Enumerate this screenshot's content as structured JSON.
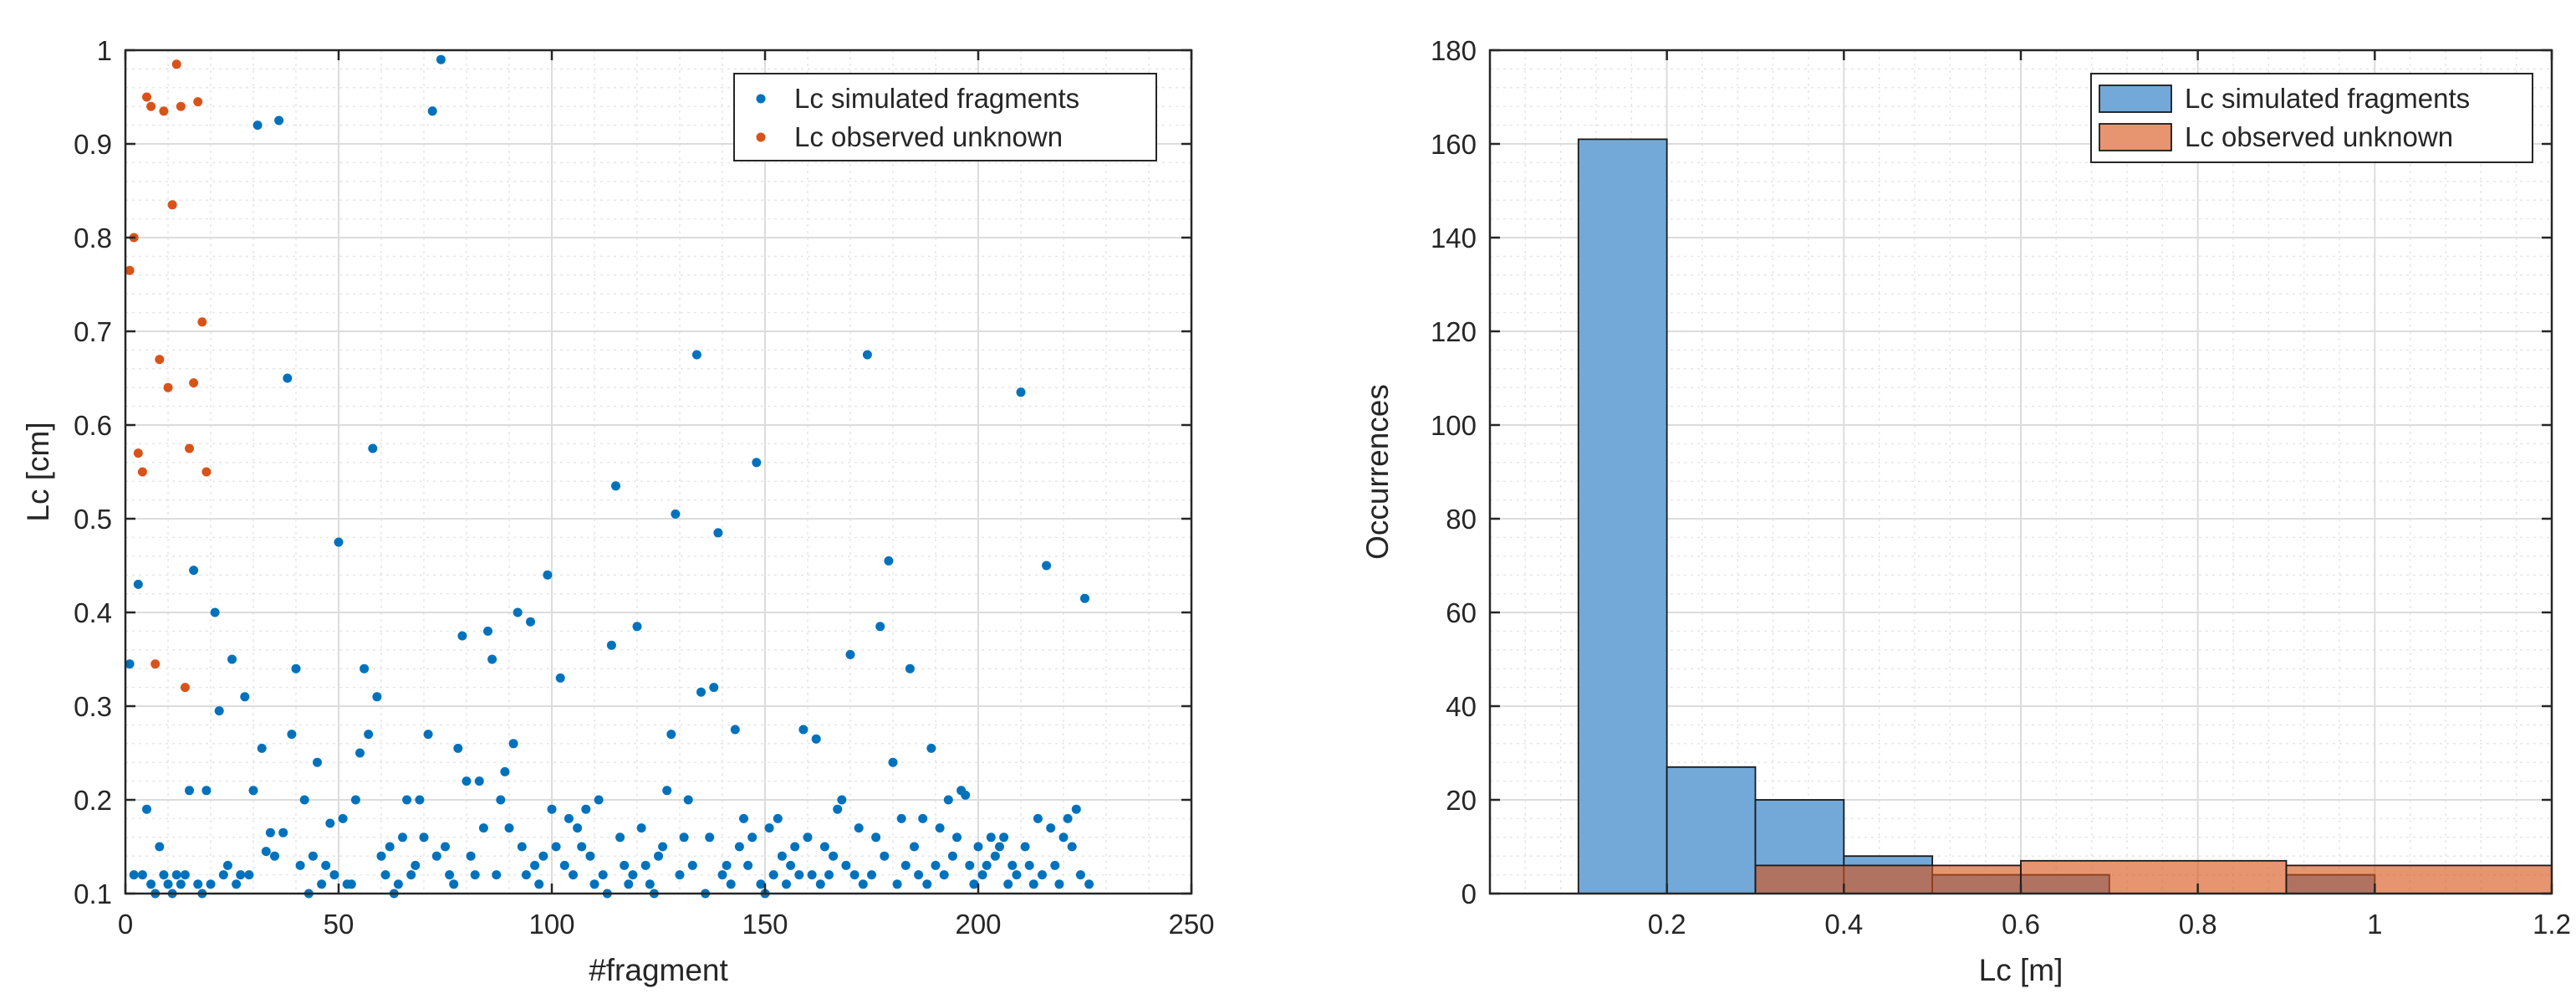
{
  "chart_data": [
    {
      "type": "scatter",
      "xlabel": "#fragment",
      "ylabel": "Lc [cm]",
      "xlim": [
        0,
        250
      ],
      "ylim": [
        0.1,
        1
      ],
      "xticks": [
        0,
        50,
        100,
        150,
        200,
        250
      ],
      "yticks": [
        0.1,
        0.2,
        0.3,
        0.4,
        0.5,
        0.6,
        0.7,
        0.8,
        0.9,
        1
      ],
      "grid": true,
      "minor_grid": true,
      "legend_position": "top-right",
      "series": [
        {
          "name": "Lc simulated fragments",
          "color": "#0072bd",
          "points": [
            [
              1,
              0.345
            ],
            [
              2,
              0.12
            ],
            [
              3,
              0.43
            ],
            [
              4,
              0.12
            ],
            [
              5,
              0.19
            ],
            [
              6,
              0.11
            ],
            [
              7,
              0.1
            ],
            [
              8,
              0.15
            ],
            [
              9,
              0.12
            ],
            [
              10,
              0.11
            ],
            [
              11,
              0.1
            ],
            [
              12,
              0.12
            ],
            [
              13,
              0.11
            ],
            [
              14,
              0.12
            ],
            [
              15,
              0.21
            ],
            [
              16,
              0.445
            ],
            [
              17,
              0.11
            ],
            [
              18,
              0.1
            ],
            [
              19,
              0.21
            ],
            [
              20,
              0.11
            ],
            [
              21,
              0.4
            ],
            [
              22,
              0.295
            ],
            [
              23,
              0.12
            ],
            [
              24,
              0.13
            ],
            [
              25,
              0.35
            ],
            [
              26,
              0.11
            ],
            [
              27,
              0.12
            ],
            [
              28,
              0.31
            ],
            [
              29,
              0.12
            ],
            [
              30,
              0.21
            ],
            [
              31,
              0.92
            ],
            [
              32,
              0.255
            ],
            [
              33,
              0.145
            ],
            [
              34,
              0.165
            ],
            [
              35,
              0.14
            ],
            [
              36,
              0.925
            ],
            [
              37,
              0.165
            ],
            [
              38,
              0.65
            ],
            [
              39,
              0.27
            ],
            [
              40,
              0.34
            ],
            [
              41,
              0.13
            ],
            [
              42,
              0.2
            ],
            [
              43,
              0.1
            ],
            [
              44,
              0.14
            ],
            [
              45,
              0.24
            ],
            [
              46,
              0.11
            ],
            [
              47,
              0.13
            ],
            [
              48,
              0.175
            ],
            [
              49,
              0.12
            ],
            [
              50,
              0.475
            ],
            [
              51,
              0.18
            ],
            [
              52,
              0.11
            ],
            [
              53,
              0.11
            ],
            [
              54,
              0.2
            ],
            [
              55,
              0.25
            ],
            [
              56,
              0.34
            ],
            [
              57,
              0.27
            ],
            [
              58,
              0.575
            ],
            [
              59,
              0.31
            ],
            [
              60,
              0.14
            ],
            [
              61,
              0.12
            ],
            [
              62,
              0.15
            ],
            [
              63,
              0.1
            ],
            [
              64,
              0.11
            ],
            [
              65,
              0.16
            ],
            [
              66,
              0.2
            ],
            [
              67,
              0.12
            ],
            [
              68,
              0.13
            ],
            [
              69,
              0.2
            ],
            [
              70,
              0.16
            ],
            [
              71,
              0.27
            ],
            [
              72,
              0.935
            ],
            [
              73,
              0.14
            ],
            [
              74,
              0.99
            ],
            [
              75,
              0.15
            ],
            [
              76,
              0.12
            ],
            [
              77,
              0.11
            ],
            [
              78,
              0.255
            ],
            [
              79,
              0.375
            ],
            [
              80,
              0.22
            ],
            [
              81,
              0.14
            ],
            [
              82,
              0.12
            ],
            [
              83,
              0.22
            ],
            [
              84,
              0.17
            ],
            [
              85,
              0.38
            ],
            [
              86,
              0.35
            ],
            [
              87,
              0.12
            ],
            [
              88,
              0.2
            ],
            [
              89,
              0.23
            ],
            [
              90,
              0.17
            ],
            [
              91,
              0.26
            ],
            [
              92,
              0.4
            ],
            [
              93,
              0.15
            ],
            [
              94,
              0.12
            ],
            [
              95,
              0.39
            ],
            [
              96,
              0.13
            ],
            [
              97,
              0.11
            ],
            [
              98,
              0.14
            ],
            [
              99,
              0.44
            ],
            [
              100,
              0.19
            ],
            [
              101,
              0.15
            ],
            [
              102,
              0.33
            ],
            [
              103,
              0.13
            ],
            [
              104,
              0.18
            ],
            [
              105,
              0.12
            ],
            [
              106,
              0.17
            ],
            [
              107,
              0.15
            ],
            [
              108,
              0.19
            ],
            [
              109,
              0.14
            ],
            [
              110,
              0.11
            ],
            [
              111,
              0.2
            ],
            [
              112,
              0.12
            ],
            [
              113,
              0.1
            ],
            [
              114,
              0.365
            ],
            [
              115,
              0.535
            ],
            [
              116,
              0.16
            ],
            [
              117,
              0.13
            ],
            [
              118,
              0.11
            ],
            [
              119,
              0.12
            ],
            [
              120,
              0.385
            ],
            [
              121,
              0.17
            ],
            [
              122,
              0.13
            ],
            [
              123,
              0.11
            ],
            [
              124,
              0.1
            ],
            [
              125,
              0.14
            ],
            [
              126,
              0.15
            ],
            [
              127,
              0.21
            ],
            [
              128,
              0.27
            ],
            [
              129,
              0.505
            ],
            [
              130,
              0.12
            ],
            [
              131,
              0.16
            ],
            [
              132,
              0.2
            ],
            [
              133,
              0.13
            ],
            [
              134,
              0.675
            ],
            [
              135,
              0.315
            ],
            [
              136,
              0.1
            ],
            [
              137,
              0.16
            ],
            [
              138,
              0.32
            ],
            [
              139,
              0.485
            ],
            [
              140,
              0.12
            ],
            [
              141,
              0.13
            ],
            [
              142,
              0.11
            ],
            [
              143,
              0.275
            ],
            [
              144,
              0.15
            ],
            [
              145,
              0.18
            ],
            [
              146,
              0.13
            ],
            [
              147,
              0.16
            ],
            [
              148,
              0.56
            ],
            [
              149,
              0.11
            ],
            [
              150,
              0.1
            ],
            [
              151,
              0.17
            ],
            [
              152,
              0.12
            ],
            [
              153,
              0.18
            ],
            [
              154,
              0.14
            ],
            [
              155,
              0.11
            ],
            [
              156,
              0.13
            ],
            [
              157,
              0.15
            ],
            [
              158,
              0.12
            ],
            [
              159,
              0.275
            ],
            [
              160,
              0.16
            ],
            [
              161,
              0.12
            ],
            [
              162,
              0.265
            ],
            [
              163,
              0.11
            ],
            [
              164,
              0.15
            ],
            [
              165,
              0.12
            ],
            [
              166,
              0.14
            ],
            [
              167,
              0.19
            ],
            [
              168,
              0.2
            ],
            [
              169,
              0.13
            ],
            [
              170,
              0.355
            ],
            [
              171,
              0.12
            ],
            [
              172,
              0.17
            ],
            [
              173,
              0.11
            ],
            [
              174,
              0.675
            ],
            [
              175,
              0.12
            ],
            [
              176,
              0.16
            ],
            [
              177,
              0.385
            ],
            [
              178,
              0.14
            ],
            [
              179,
              0.455
            ],
            [
              180,
              0.24
            ],
            [
              181,
              0.11
            ],
            [
              182,
              0.18
            ],
            [
              183,
              0.13
            ],
            [
              184,
              0.34
            ],
            [
              185,
              0.15
            ],
            [
              186,
              0.12
            ],
            [
              187,
              0.18
            ],
            [
              188,
              0.11
            ],
            [
              189,
              0.255
            ],
            [
              190,
              0.13
            ],
            [
              191,
              0.17
            ],
            [
              192,
              0.12
            ],
            [
              193,
              0.2
            ],
            [
              194,
              0.14
            ],
            [
              195,
              0.16
            ],
            [
              196,
              0.21
            ],
            [
              197,
              0.205
            ],
            [
              198,
              0.13
            ],
            [
              199,
              0.11
            ],
            [
              200,
              0.15
            ],
            [
              201,
              0.12
            ],
            [
              202,
              0.13
            ],
            [
              203,
              0.16
            ],
            [
              204,
              0.14
            ],
            [
              205,
              0.15
            ],
            [
              206,
              0.16
            ],
            [
              207,
              0.11
            ],
            [
              208,
              0.13
            ],
            [
              209,
              0.12
            ],
            [
              210,
              0.635
            ],
            [
              211,
              0.15
            ],
            [
              212,
              0.13
            ],
            [
              213,
              0.11
            ],
            [
              214,
              0.18
            ],
            [
              215,
              0.12
            ],
            [
              216,
              0.45
            ],
            [
              217,
              0.17
            ],
            [
              218,
              0.13
            ],
            [
              219,
              0.11
            ],
            [
              220,
              0.16
            ],
            [
              221,
              0.18
            ],
            [
              222,
              0.15
            ],
            [
              223,
              0.19
            ],
            [
              224,
              0.12
            ],
            [
              225,
              0.415
            ],
            [
              226,
              0.11
            ]
          ]
        },
        {
          "name": "Lc observed unknown",
          "color": "#d95319",
          "points": [
            [
              1,
              0.765
            ],
            [
              2,
              0.8
            ],
            [
              3,
              0.57
            ],
            [
              4,
              0.55
            ],
            [
              5,
              0.95
            ],
            [
              6,
              0.94
            ],
            [
              7,
              0.345
            ],
            [
              8,
              0.67
            ],
            [
              9,
              0.935
            ],
            [
              10,
              0.64
            ],
            [
              11,
              0.835
            ],
            [
              12,
              0.985
            ],
            [
              13,
              0.94
            ],
            [
              14,
              0.32
            ],
            [
              15,
              0.575
            ],
            [
              16,
              0.645
            ],
            [
              17,
              0.945
            ],
            [
              18,
              0.71
            ],
            [
              19,
              0.55
            ]
          ]
        }
      ]
    },
    {
      "type": "bar",
      "subtype": "histogram",
      "xlabel": "Lc [m]",
      "ylabel": "Occurrences",
      "xlim": [
        0,
        1.2
      ],
      "ylim": [
        0,
        180
      ],
      "xticks": [
        0.2,
        0.4,
        0.6,
        0.8,
        1,
        1.2
      ],
      "yticks": [
        0,
        20,
        40,
        60,
        80,
        100,
        120,
        140,
        160,
        180
      ],
      "grid": true,
      "minor_grid": true,
      "legend_position": "top-right",
      "series": [
        {
          "name": "Lc simulated fragments",
          "color": "#0072bd",
          "bins": [
            [
              0.1,
              0.2,
              161
            ],
            [
              0.2,
              0.3,
              27
            ],
            [
              0.3,
              0.4,
              20
            ],
            [
              0.4,
              0.5,
              8
            ],
            [
              0.5,
              0.6,
              4
            ],
            [
              0.6,
              0.7,
              4
            ],
            [
              0.9,
              1.0,
              4
            ]
          ]
        },
        {
          "name": "Lc observed unknown",
          "color": "#d95319",
          "bins": [
            [
              0.3,
              0.6,
              6
            ],
            [
              0.6,
              0.9,
              7
            ],
            [
              0.9,
              1.2,
              6
            ]
          ]
        }
      ]
    }
  ]
}
